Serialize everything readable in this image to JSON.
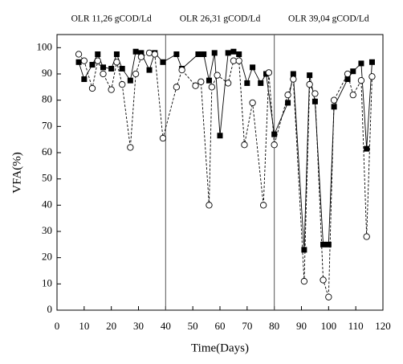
{
  "chart_data": {
    "type": "line",
    "x_label": "Time(Days)",
    "y_label": "VFA(%)",
    "xlim": [
      0,
      120
    ],
    "ylim": [
      0,
      105
    ],
    "xticks": [
      0,
      10,
      20,
      30,
      40,
      50,
      60,
      70,
      80,
      90,
      100,
      110,
      120
    ],
    "yticks": [
      0,
      10,
      20,
      30,
      40,
      50,
      60,
      70,
      80,
      90,
      100
    ],
    "vlines": [
      40,
      80
    ],
    "annotations": [
      "OLR 11,26 gCOD/Ld",
      "OLR 26,31 gCOD/Ld",
      "OLR 39,04 gCOD/Ld"
    ],
    "series": [
      {
        "color": "#000000",
        "marker": "square",
        "line": "solid",
        "x": [
          8,
          10,
          13,
          15,
          17,
          20,
          22,
          24,
          27,
          29,
          31,
          34,
          36,
          39,
          44,
          46,
          52,
          54,
          56,
          58,
          60,
          63,
          65,
          67,
          70,
          72,
          75,
          77,
          80,
          85,
          87,
          91,
          93,
          95,
          98,
          100,
          102,
          107,
          109,
          112,
          114,
          116
        ],
        "values": [
          94.5,
          88,
          93.5,
          97.5,
          92.5,
          92,
          97.5,
          92,
          87.5,
          98.5,
          98,
          91.5,
          98,
          94.5,
          97.5,
          92,
          97.5,
          97.5,
          87.5,
          98,
          66.5,
          98,
          98.5,
          97.5,
          86.5,
          92.5,
          86.5,
          90,
          67,
          79,
          90,
          23,
          89.5,
          79.5,
          25,
          25,
          77.5,
          88,
          91,
          94,
          61.5,
          94.5
        ]
      },
      {
        "color": "#000000",
        "marker": "circle",
        "line": "dashed",
        "x": [
          8,
          10,
          13,
          15,
          17,
          20,
          22,
          24,
          27,
          29,
          31,
          34,
          36,
          39,
          44,
          46,
          51,
          53,
          56,
          57,
          59,
          63,
          65,
          67,
          69,
          72,
          76,
          78,
          80,
          85,
          87,
          91,
          93,
          95,
          98,
          100,
          102,
          107,
          109,
          112,
          114,
          116
        ],
        "values": [
          97.5,
          95,
          84.5,
          95,
          90,
          84,
          94.5,
          86,
          62,
          90,
          96.5,
          98,
          97.5,
          65.5,
          85,
          91.5,
          85.5,
          87,
          40,
          85,
          89.5,
          86.5,
          95,
          95,
          63,
          79,
          40,
          90.5,
          63,
          82,
          88,
          11,
          86,
          82.5,
          11.5,
          5,
          80,
          90,
          82,
          87.5,
          28,
          89
        ]
      }
    ]
  }
}
